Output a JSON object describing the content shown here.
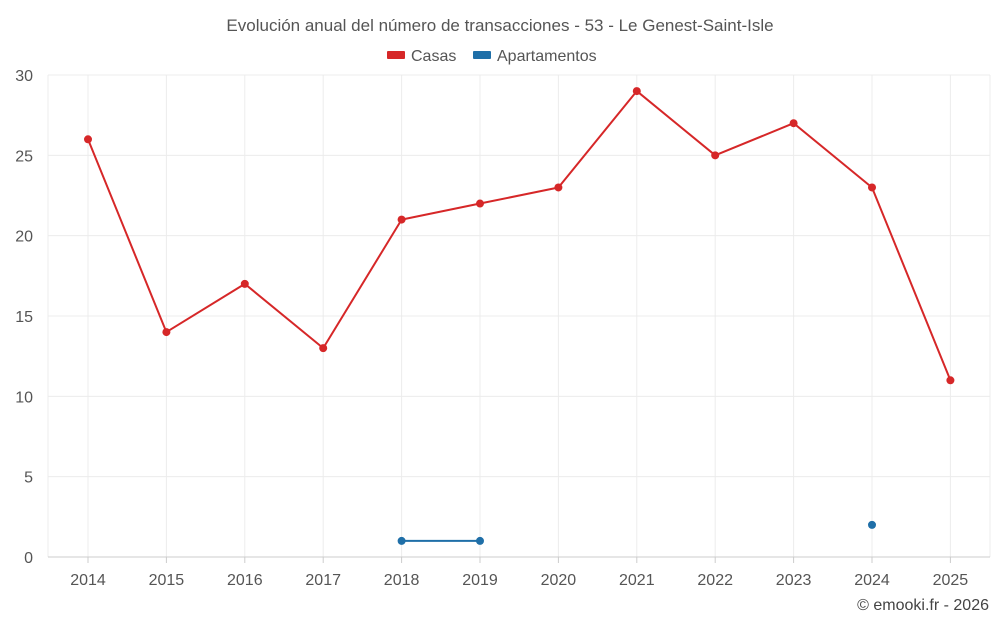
{
  "chart_data": {
    "type": "line",
    "title": "Evolución anual del número de transacciones - 53 - Le Genest-Saint-Isle",
    "categories": [
      "2014",
      "2015",
      "2016",
      "2017",
      "2018",
      "2019",
      "2020",
      "2021",
      "2022",
      "2023",
      "2024",
      "2025"
    ],
    "ylim": [
      0,
      30
    ],
    "yticks": [
      "0",
      "5",
      "10",
      "15",
      "20",
      "25",
      "30"
    ],
    "grid": true,
    "legend_position": "top-center",
    "series": [
      {
        "name": "Casas",
        "color": "#d62728",
        "values": [
          26,
          14,
          17,
          13,
          21,
          22,
          23,
          29,
          25,
          27,
          23,
          11
        ]
      },
      {
        "name": "Apartamentos",
        "color": "#1f6fa8",
        "values": [
          null,
          null,
          null,
          null,
          1,
          1,
          null,
          null,
          null,
          null,
          2,
          null
        ]
      }
    ],
    "credit": "© emooki.fr - 2026"
  }
}
